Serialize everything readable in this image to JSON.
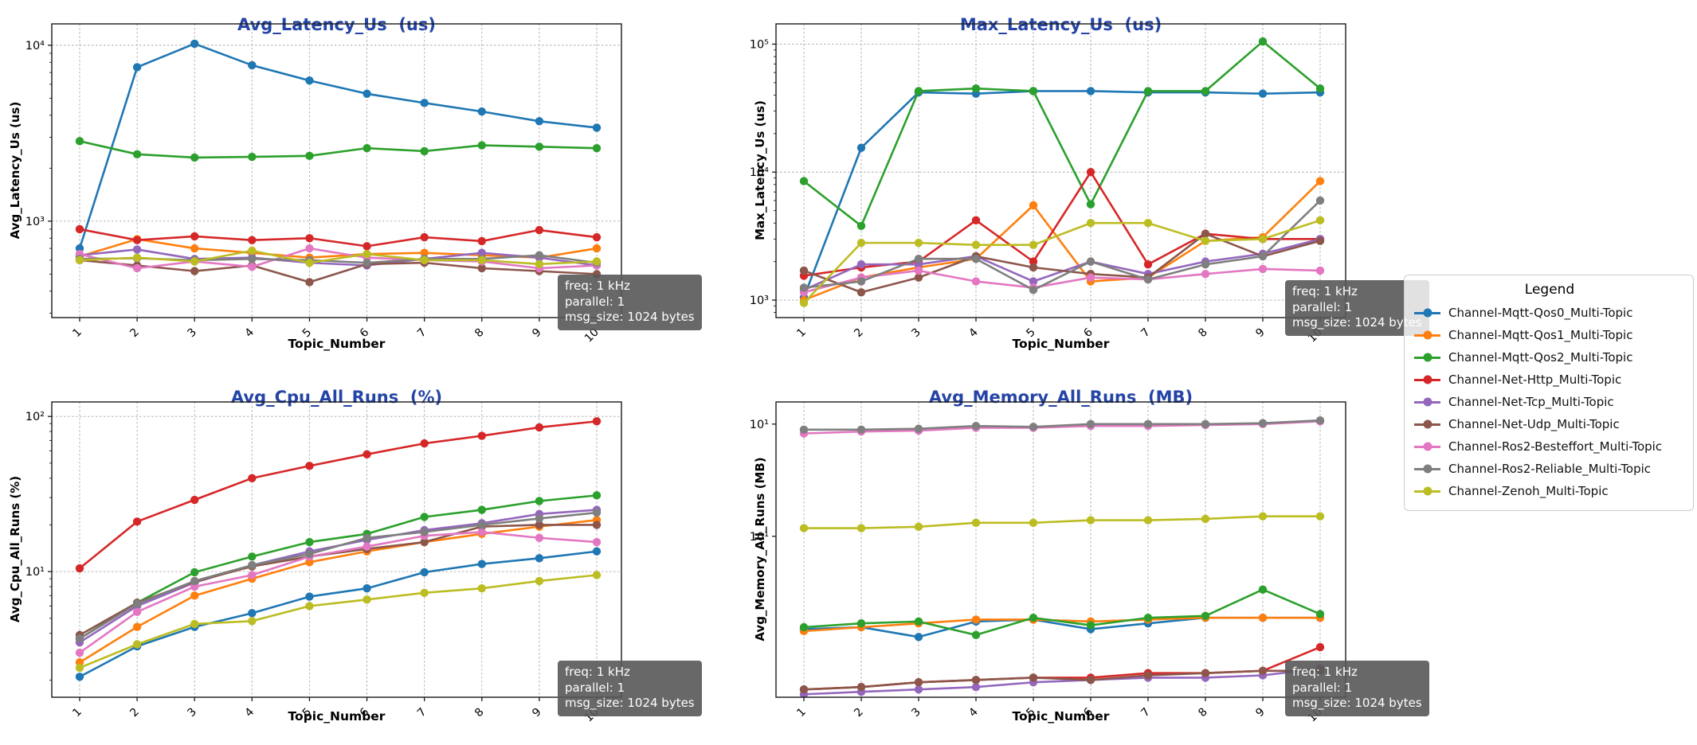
{
  "style": {
    "title_color": "#2444a6",
    "grid_color": "#aaaaaa",
    "spine_color": "#1a1a1a",
    "annotation_bg": "#585858",
    "annotation_text_color": "#ffffff"
  },
  "palette": {
    "Channel-Mqtt-Qos0_Multi-Topic": "#1f77b4",
    "Channel-Mqtt-Qos1_Multi-Topic": "#ff7f0e",
    "Channel-Mqtt-Qos2_Multi-Topic": "#2ca02c",
    "Channel-Net-Http_Multi-Topic": "#d62728",
    "Channel-Net-Tcp_Multi-Topic": "#9467bd",
    "Channel-Net-Udp_Multi-Topic": "#8c564b",
    "Channel-Ros2-Besteffort_Multi-Topic": "#e377c2",
    "Channel-Ros2-Reliable_Multi-Topic": "#7f7f7f",
    "Channel-Zenoh_Multi-Topic": "#bcbd22"
  },
  "legend": {
    "title": "Legend",
    "entries": [
      "Channel-Mqtt-Qos0_Multi-Topic",
      "Channel-Mqtt-Qos1_Multi-Topic",
      "Channel-Mqtt-Qos2_Multi-Topic",
      "Channel-Net-Http_Multi-Topic",
      "Channel-Net-Tcp_Multi-Topic",
      "Channel-Net-Udp_Multi-Topic",
      "Channel-Ros2-Besteffort_Multi-Topic",
      "Channel-Ros2-Reliable_Multi-Topic",
      "Channel-Zenoh_Multi-Topic"
    ]
  },
  "annotation": {
    "lines": [
      "freq: 1 kHz",
      "parallel: 1",
      "msg_size: 1024 bytes"
    ]
  },
  "chart_data": [
    {
      "type": "line",
      "title": "Avg_Latency_Us  (us)",
      "ylabel": "Avg_Latency_Us (us)",
      "xlabel": "Topic_Number",
      "yscale": "log",
      "ylim": [
        283,
        13230
      ],
      "ygrid": true,
      "yticks": [
        {
          "v": 1000,
          "label": "10³"
        },
        {
          "v": 10000,
          "label": "10⁴"
        }
      ],
      "x": [
        1,
        2,
        3,
        4,
        5,
        6,
        7,
        8,
        9,
        10
      ],
      "series": [
        {
          "name": "Channel-Mqtt-Qos0_Multi-Topic",
          "values": [
            700,
            7500,
            10200,
            7700,
            6300,
            5300,
            4700,
            4200,
            3700,
            3400
          ]
        },
        {
          "name": "Channel-Mqtt-Qos1_Multi-Topic",
          "values": [
            630,
            790,
            700,
            660,
            620,
            650,
            660,
            640,
            620,
            700
          ]
        },
        {
          "name": "Channel-Mqtt-Qos2_Multi-Topic",
          "values": [
            2850,
            2400,
            2300,
            2320,
            2350,
            2600,
            2500,
            2700,
            2650,
            2600
          ]
        },
        {
          "name": "Channel-Net-Http_Multi-Topic",
          "values": [
            900,
            780,
            820,
            780,
            800,
            720,
            810,
            770,
            890,
            810
          ]
        },
        {
          "name": "Channel-Net-Tcp_Multi-Topic",
          "values": [
            640,
            690,
            610,
            620,
            580,
            560,
            610,
            660,
            620,
            560
          ]
        },
        {
          "name": "Channel-Net-Udp_Multi-Topic",
          "values": [
            600,
            560,
            520,
            560,
            450,
            570,
            580,
            540,
            520,
            500
          ]
        },
        {
          "name": "Channel-Ros2-Besteffort_Multi-Topic",
          "values": [
            650,
            540,
            590,
            550,
            700,
            620,
            600,
            590,
            540,
            560
          ]
        },
        {
          "name": "Channel-Ros2-Reliable_Multi-Topic",
          "values": [
            610,
            615,
            600,
            610,
            600,
            580,
            610,
            610,
            640,
            580
          ]
        },
        {
          "name": "Channel-Zenoh_Multi-Topic",
          "values": [
            600,
            620,
            590,
            680,
            580,
            650,
            600,
            600,
            570,
            590
          ]
        }
      ]
    },
    {
      "type": "line",
      "title": "Max_Latency_Us  (us)",
      "ylabel": "Max_Latency_Us (us)",
      "xlabel": "Topic_Number",
      "yscale": "log",
      "ylim": [
        730,
        144000
      ],
      "ygrid": true,
      "yticks": [
        {
          "v": 1000,
          "label": "10³"
        },
        {
          "v": 10000,
          "label": "10⁴"
        },
        {
          "v": 100000,
          "label": "10⁵"
        }
      ],
      "x": [
        1,
        2,
        3,
        4,
        5,
        6,
        7,
        8,
        9,
        10
      ],
      "series": [
        {
          "name": "Channel-Mqtt-Qos0_Multi-Topic",
          "values": [
            1050,
            15500,
            42000,
            41000,
            43000,
            43000,
            42000,
            42000,
            41000,
            42000
          ]
        },
        {
          "name": "Channel-Mqtt-Qos1_Multi-Topic",
          "values": [
            1000,
            1500,
            1800,
            2100,
            5500,
            1400,
            1500,
            2900,
            3100,
            8500
          ]
        },
        {
          "name": "Channel-Mqtt-Qos2_Multi-Topic",
          "values": [
            8500,
            3800,
            43000,
            45000,
            43000,
            5600,
            43000,
            43000,
            105000,
            45000
          ]
        },
        {
          "name": "Channel-Net-Http_Multi-Topic",
          "values": [
            1550,
            1800,
            2000,
            4200,
            2000,
            10000,
            1900,
            3300,
            3000,
            3000
          ]
        },
        {
          "name": "Channel-Net-Tcp_Multi-Topic",
          "values": [
            1200,
            1900,
            1900,
            2200,
            1400,
            2000,
            1600,
            2000,
            2300,
            3000
          ]
        },
        {
          "name": "Channel-Net-Udp_Multi-Topic",
          "values": [
            1700,
            1150,
            1500,
            2200,
            1800,
            1600,
            1500,
            3300,
            2200,
            2900
          ]
        },
        {
          "name": "Channel-Ros2-Besteffort_Multi-Topic",
          "values": [
            1150,
            1500,
            1700,
            1400,
            1250,
            1500,
            1450,
            1600,
            1750,
            1700
          ]
        },
        {
          "name": "Channel-Ros2-Reliable_Multi-Topic",
          "values": [
            1250,
            1400,
            2100,
            2100,
            1200,
            2000,
            1450,
            1900,
            2200,
            6000
          ]
        },
        {
          "name": "Channel-Zenoh_Multi-Topic",
          "values": [
            950,
            2800,
            2800,
            2700,
            2700,
            4000,
            4000,
            2900,
            3000,
            4200
          ]
        }
      ]
    },
    {
      "type": "line",
      "title": "Avg_Cpu_All_Runs  (%)",
      "ylabel": "Avg_Cpu_All_Runs (%)",
      "xlabel": "Topic_Number",
      "yscale": "log",
      "ylim": [
        1.55,
        124
      ],
      "ygrid": true,
      "yticks": [
        {
          "v": 10,
          "label": "10¹"
        },
        {
          "v": 100,
          "label": "10²"
        }
      ],
      "x": [
        1,
        2,
        3,
        4,
        5,
        6,
        7,
        8,
        9,
        10
      ],
      "series": [
        {
          "name": "Channel-Mqtt-Qos0_Multi-Topic",
          "values": [
            2.1,
            3.3,
            4.4,
            5.4,
            6.9,
            7.8,
            9.9,
            11.2,
            12.2,
            13.5
          ]
        },
        {
          "name": "Channel-Mqtt-Qos1_Multi-Topic",
          "values": [
            2.6,
            4.4,
            7.0,
            9.0,
            11.5,
            13.5,
            15.5,
            17.5,
            19.5,
            21.5
          ]
        },
        {
          "name": "Channel-Mqtt-Qos2_Multi-Topic",
          "values": [
            3.7,
            6.3,
            9.9,
            12.5,
            15.5,
            17.5,
            22.5,
            25.0,
            28.5,
            31.0
          ]
        },
        {
          "name": "Channel-Net-Http_Multi-Topic",
          "values": [
            10.5,
            21.0,
            29.0,
            40.0,
            48.0,
            57.0,
            67.0,
            75.0,
            85.0,
            93.0
          ]
        },
        {
          "name": "Channel-Net-Tcp_Multi-Topic",
          "values": [
            3.5,
            6.0,
            8.5,
            11.0,
            13.5,
            16.0,
            18.5,
            20.5,
            23.5,
            25.0
          ]
        },
        {
          "name": "Channel-Net-Udp_Multi-Topic",
          "values": [
            3.9,
            6.3,
            8.6,
            10.8,
            12.5,
            14.0,
            15.5,
            19.5,
            20.0,
            20.0
          ]
        },
        {
          "name": "Channel-Ros2-Besteffort_Multi-Topic",
          "values": [
            3.0,
            5.5,
            8.0,
            9.5,
            12.5,
            14.5,
            17.0,
            18.0,
            16.5,
            15.5
          ]
        },
        {
          "name": "Channel-Ros2-Reliable_Multi-Topic",
          "values": [
            3.7,
            6.2,
            8.7,
            11.0,
            13.0,
            16.5,
            18.0,
            20.0,
            22.0,
            24.0
          ]
        },
        {
          "name": "Channel-Zenoh_Multi-Topic",
          "values": [
            2.4,
            3.4,
            4.6,
            4.8,
            6.0,
            6.6,
            7.3,
            7.8,
            8.7,
            9.5
          ]
        }
      ]
    },
    {
      "type": "line",
      "title": "Avg_Memory_All_Runs  (MB)",
      "ylabel": "Avg_Memory_All_Runs (MB)",
      "xlabel": "Topic_Number",
      "yscale": "log",
      "ylim": [
        11.18,
        32.5
      ],
      "ygrid": false,
      "yticks": [
        {
          "v": 20,
          "label": "2 × 10¹"
        },
        {
          "v": 30,
          "label": "3 × 10¹"
        }
      ],
      "x": [
        1,
        2,
        3,
        4,
        5,
        6,
        7,
        8,
        9,
        10
      ],
      "series": [
        {
          "name": "Channel-Mqtt-Qos0_Multi-Topic",
          "values": [
            14.3,
            14.4,
            13.9,
            14.7,
            14.8,
            14.3,
            14.6,
            14.9,
            14.9,
            14.9
          ]
        },
        {
          "name": "Channel-Mqtt-Qos1_Multi-Topic",
          "values": [
            14.2,
            14.4,
            14.6,
            14.8,
            14.8,
            14.7,
            14.8,
            14.9,
            14.9,
            14.9
          ]
        },
        {
          "name": "Channel-Mqtt-Qos2_Multi-Topic",
          "values": [
            14.4,
            14.6,
            14.7,
            14.0,
            14.9,
            14.5,
            14.9,
            15.0,
            16.5,
            15.1
          ]
        },
        {
          "name": "Channel-Net-Http_Multi-Topic",
          "values": [
            11.5,
            11.6,
            11.8,
            11.9,
            12.0,
            12.0,
            12.2,
            12.2,
            12.3,
            13.4
          ]
        },
        {
          "name": "Channel-Net-Tcp_Multi-Topic",
          "values": [
            11.3,
            11.4,
            11.5,
            11.6,
            11.8,
            11.9,
            12.0,
            12.0,
            12.1,
            12.4
          ]
        },
        {
          "name": "Channel-Net-Udp_Multi-Topic",
          "values": [
            11.5,
            11.6,
            11.8,
            11.9,
            12.0,
            11.9,
            12.1,
            12.2,
            12.3,
            12.3
          ]
        },
        {
          "name": "Channel-Ros2-Besteffort_Multi-Topic",
          "values": [
            29.0,
            29.2,
            29.3,
            29.6,
            29.6,
            29.8,
            29.8,
            29.9,
            30.0,
            30.3
          ]
        },
        {
          "name": "Channel-Ros2-Reliable_Multi-Topic",
          "values": [
            29.4,
            29.4,
            29.5,
            29.8,
            29.7,
            30.0,
            30.0,
            30.0,
            30.1,
            30.4
          ]
        },
        {
          "name": "Channel-Zenoh_Multi-Topic",
          "values": [
            20.6,
            20.6,
            20.7,
            21.0,
            21.0,
            21.2,
            21.2,
            21.3,
            21.5,
            21.5
          ]
        }
      ]
    }
  ]
}
